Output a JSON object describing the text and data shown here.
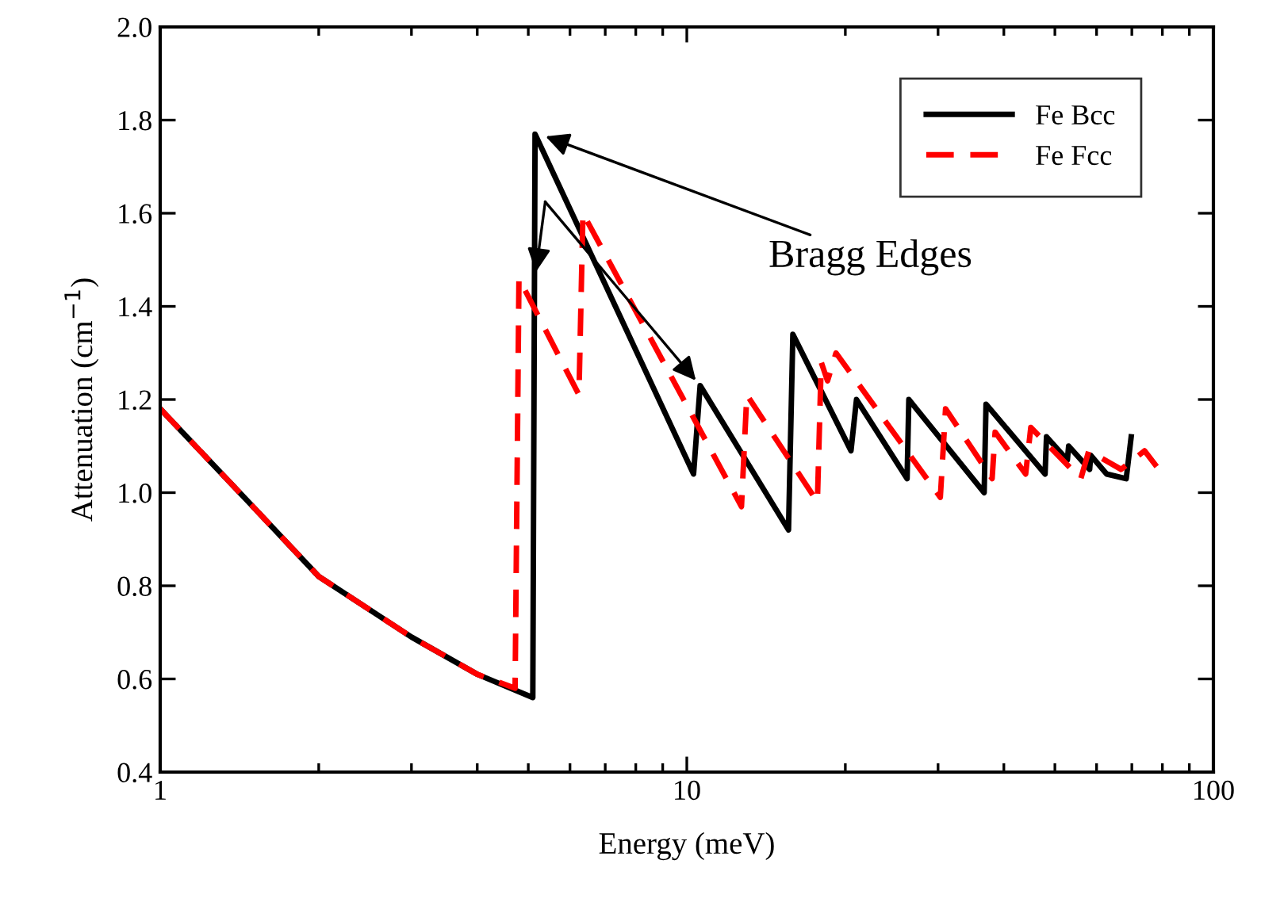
{
  "chart_data": {
    "type": "line",
    "xlabel": "Energy (meV)",
    "ylabel": "Attenuation (cm$^{−1}$)",
    "log": "x",
    "xlim": [
      1,
      100
    ],
    "xticks": [
      1,
      10,
      100
    ],
    "ylim": [
      0.4,
      2.0
    ],
    "yticks": [
      {
        "value": 0.4,
        "label": "0.4"
      },
      {
        "value": 0.6,
        "label": "0.6"
      },
      {
        "value": 0.8,
        "label": "0.8"
      },
      {
        "value": 1.0,
        "label": "1.0"
      },
      {
        "value": 1.2,
        "label": "1.2"
      },
      {
        "value": 1.4,
        "label": "1.4"
      },
      {
        "value": 1.6,
        "label": "1.6"
      },
      {
        "value": 1.8,
        "label": "1.8"
      },
      {
        "value": 2.0,
        "label": "2.0"
      }
    ],
    "grid": false,
    "legend": "top right",
    "marker": "none",
    "annotations": [
      {
        "text": "Bragg Edges",
        "x": 5.25,
        "y": 1.77
      }
    ],
    "series": [
      {
        "name": "Fe Bcc",
        "color": "#000000",
        "line_style": "solid",
        "x": [
          1,
          1.5,
          2,
          3,
          4,
          5.1,
          5.15,
          10.3,
          10.6,
          15.6,
          15.9,
          20.5,
          21,
          26.2,
          26.4,
          36.7,
          37,
          47.9,
          48.2,
          52.8,
          53.1,
          58.2,
          58.5,
          62.7,
          68.3,
          69.8
        ],
        "values": [
          1.18,
          0.97,
          0.82,
          0.69,
          0.61,
          0.56,
          1.77,
          1.04,
          1.23,
          0.92,
          1.34,
          1.09,
          1.2,
          1.03,
          1.2,
          1.0,
          1.19,
          1.04,
          1.12,
          1.07,
          1.1,
          1.05,
          1.08,
          1.04,
          1.03,
          1.12
        ]
      },
      {
        "name": "Fe Fcc",
        "color": "#ff0000",
        "line_style": "dashed",
        "x": [
          1,
          1.5,
          2,
          3,
          4,
          4.72,
          4.8,
          6.24,
          6.35,
          12.7,
          13,
          17.7,
          18,
          18.5,
          19.2,
          30.3,
          31,
          38,
          38.5,
          44,
          45,
          56,
          58,
          66.8,
          74,
          80
        ],
        "values": [
          1.18,
          0.97,
          0.82,
          0.69,
          0.61,
          0.58,
          1.46,
          1.21,
          1.6,
          0.97,
          1.21,
          0.98,
          1.28,
          1.24,
          1.3,
          0.99,
          1.18,
          1.03,
          1.13,
          1.04,
          1.14,
          1.03,
          1.09,
          1.05,
          1.09,
          1.04
        ]
      }
    ]
  }
}
